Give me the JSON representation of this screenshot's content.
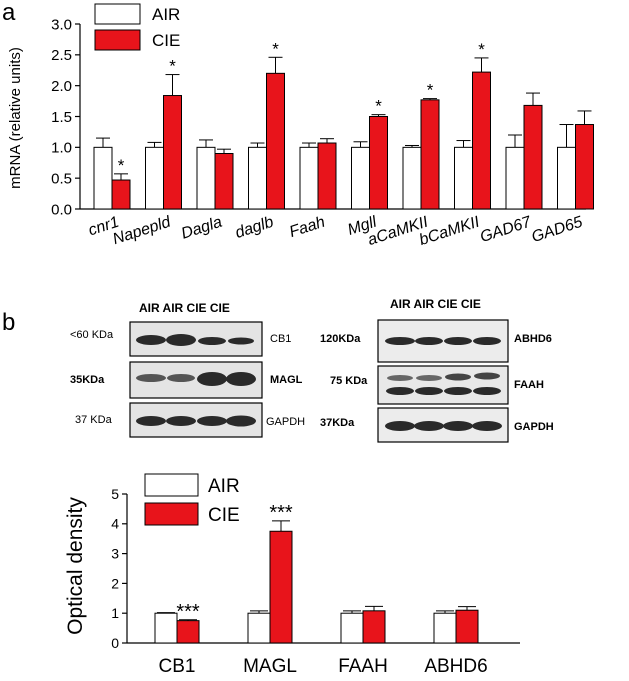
{
  "panels": {
    "a": "a",
    "b": "b"
  },
  "colors": {
    "air": "#ffffff",
    "cie": "#e8141b",
    "outline": "#000000"
  },
  "chart_data": [
    {
      "type": "bar",
      "panel": "a",
      "ylabel": "mRNA (relative units)",
      "ylim": [
        0,
        3.0
      ],
      "yticks": [
        "0.0",
        "0.5",
        "1.0",
        "1.5",
        "2.0",
        "2.5",
        "3.0"
      ],
      "categories": [
        "cnr1",
        "Napepld",
        "Dagla",
        "daglb",
        "Faah",
        "Mgll",
        "aCaMKII",
        "bCaMKII",
        "GAD67",
        "GAD65"
      ],
      "series": [
        {
          "name": "AIR",
          "values": [
            1.0,
            1.0,
            1.0,
            1.0,
            1.0,
            1.0,
            1.0,
            1.0,
            1.0,
            1.0
          ],
          "errors": [
            0.15,
            0.08,
            0.12,
            0.07,
            0.07,
            0.09,
            0.03,
            0.11,
            0.2,
            0.37
          ]
        },
        {
          "name": "CIE",
          "values": [
            0.47,
            1.84,
            0.9,
            2.2,
            1.07,
            1.5,
            1.77,
            2.22,
            1.68,
            1.37
          ],
          "errors": [
            0.1,
            0.34,
            0.07,
            0.26,
            0.07,
            0.03,
            0.02,
            0.23,
            0.2,
            0.22
          ]
        }
      ],
      "annotations": [
        "*",
        "*",
        "",
        "*",
        "",
        "*",
        "*",
        "*",
        "",
        ""
      ],
      "legend": "top-left"
    },
    {
      "type": "bar",
      "panel": "b",
      "ylabel": "Optical density",
      "ylim": [
        0,
        5
      ],
      "yticks": [
        "0",
        "1",
        "2",
        "3",
        "4",
        "5"
      ],
      "categories": [
        "CB1",
        "MAGL",
        "FAAH",
        "ABHD6"
      ],
      "series": [
        {
          "name": "AIR",
          "values": [
            1.0,
            1.0,
            1.0,
            1.0
          ],
          "errors": [
            0.02,
            0.08,
            0.08,
            0.08
          ]
        },
        {
          "name": "CIE",
          "values": [
            0.75,
            3.75,
            1.08,
            1.1
          ],
          "errors": [
            0.03,
            0.35,
            0.15,
            0.12
          ]
        }
      ],
      "annotations": [
        "***",
        "***",
        "",
        ""
      ],
      "legend": "top-left"
    }
  ],
  "blots": {
    "left": {
      "header": "AIR AIR CIE CIE",
      "rows": [
        {
          "mw": "<60 KDa",
          "protein": "CB1"
        },
        {
          "mw": "35KDa",
          "protein": "MAGL"
        },
        {
          "mw": "37 KDa",
          "protein": "GAPDH"
        }
      ]
    },
    "right": {
      "header": "AIR AIR CIE CIE",
      "rows": [
        {
          "mw": "120KDa",
          "protein": "ABHD6"
        },
        {
          "mw": "75 KDa",
          "protein": "FAAH"
        },
        {
          "mw": "37KDa",
          "protein": "GAPDH"
        }
      ]
    }
  }
}
